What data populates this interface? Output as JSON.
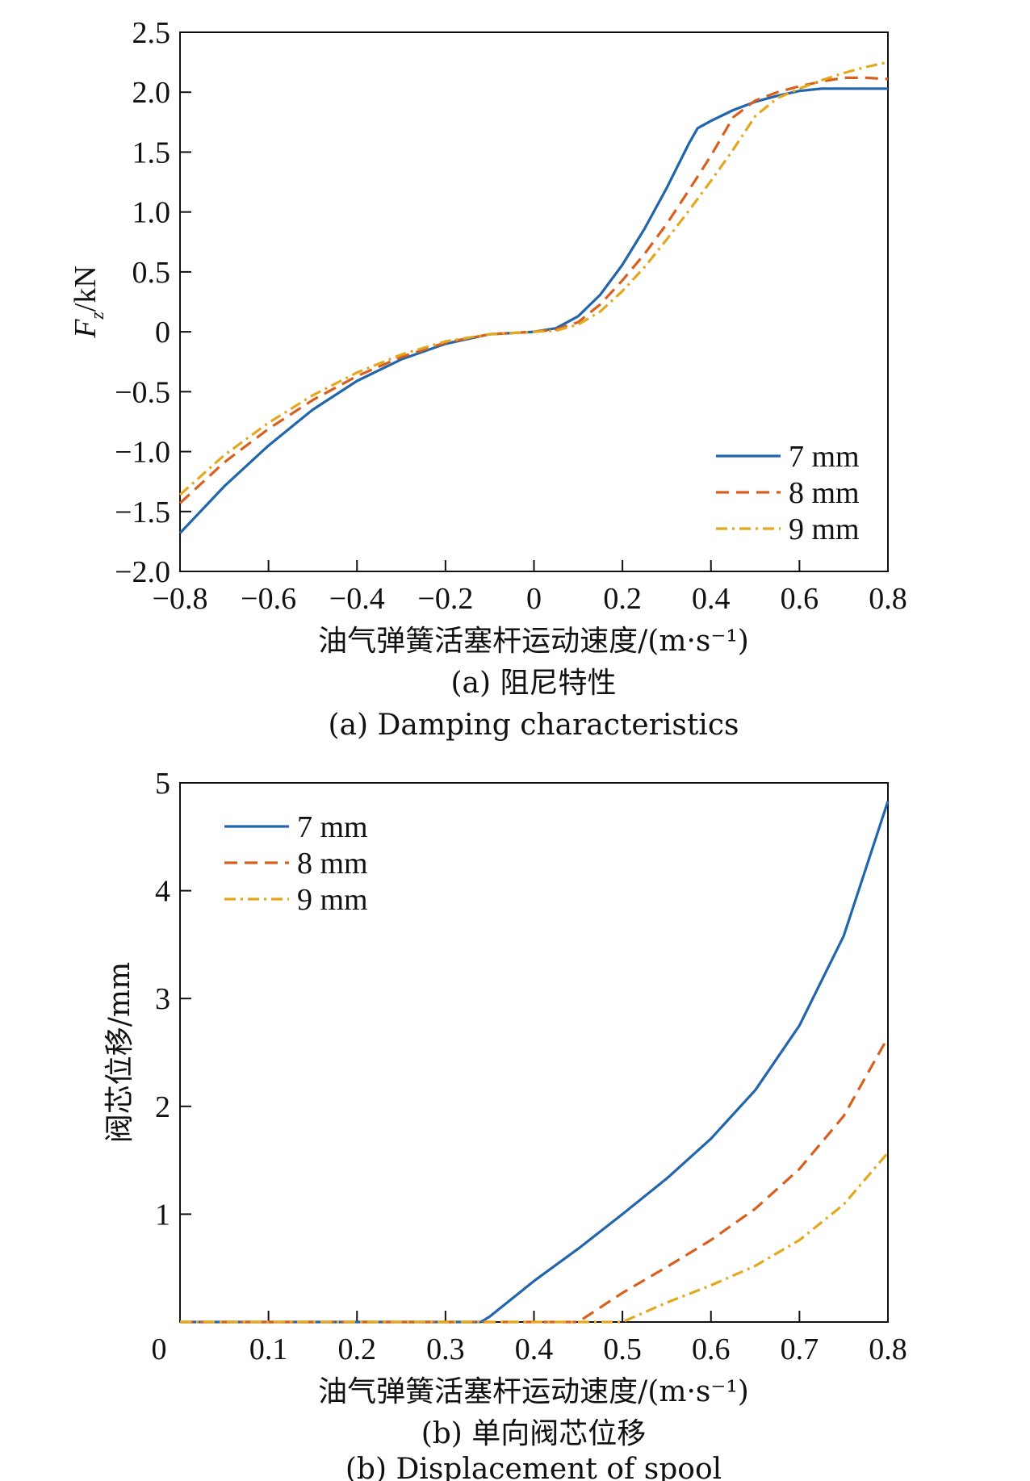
{
  "colors": {
    "blue": "#2166ac",
    "orange": "#d95f1e",
    "yellow": "#e3a81c",
    "axis": "#111111"
  },
  "chart_data": [
    {
      "id": "a",
      "type": "line",
      "title": "",
      "caption_cn": "(a) 阻尼特性",
      "caption_en": "(a) Damping characteristics",
      "xlabel": "油气弹簧活塞杆运动速度/(m·s⁻¹)",
      "ylabel": "F",
      "ylabel_sub": "z",
      "ylabel_unit": "/kN",
      "xlim": [
        -0.8,
        0.8
      ],
      "ylim": [
        -2.0,
        2.5
      ],
      "xticks": [
        -0.8,
        -0.6,
        -0.4,
        -0.2,
        0,
        0.2,
        0.4,
        0.6,
        0.8
      ],
      "xtick_labels": [
        "−0.8",
        "−0.6",
        "−0.4",
        "−0.2",
        "0",
        "0.2",
        "0.4",
        "0.6",
        "0.8"
      ],
      "yticks": [
        -2.0,
        -1.5,
        -1.0,
        -0.5,
        0,
        0.5,
        1.0,
        1.5,
        2.0,
        2.5
      ],
      "ytick_labels": [
        "−2.0",
        "−1.5",
        "−1.0",
        "−0.5",
        "0",
        "0.5",
        "1.0",
        "1.5",
        "2.0",
        "2.5"
      ],
      "grid": false,
      "legend_position": "bottom-right",
      "series": [
        {
          "name": "7 mm",
          "color": "blue",
          "dash": "solid",
          "x": [
            -0.8,
            -0.7,
            -0.6,
            -0.5,
            -0.4,
            -0.3,
            -0.2,
            -0.1,
            0,
            0.05,
            0.1,
            0.15,
            0.2,
            0.25,
            0.3,
            0.35,
            0.37,
            0.4,
            0.45,
            0.5,
            0.55,
            0.6,
            0.65,
            0.7,
            0.8
          ],
          "y": [
            -1.68,
            -1.29,
            -0.95,
            -0.65,
            -0.41,
            -0.23,
            -0.1,
            -0.02,
            0,
            0.03,
            0.13,
            0.31,
            0.56,
            0.86,
            1.2,
            1.57,
            1.7,
            1.76,
            1.85,
            1.92,
            1.97,
            2.01,
            2.03,
            2.03,
            2.03
          ]
        },
        {
          "name": "8 mm",
          "color": "orange",
          "dash": "dashed",
          "x": [
            -0.8,
            -0.7,
            -0.6,
            -0.5,
            -0.4,
            -0.3,
            -0.2,
            -0.1,
            0,
            0.05,
            0.1,
            0.15,
            0.2,
            0.25,
            0.3,
            0.35,
            0.4,
            0.45,
            0.5,
            0.55,
            0.6,
            0.65,
            0.7,
            0.75,
            0.8
          ],
          "y": [
            -1.43,
            -1.09,
            -0.81,
            -0.57,
            -0.37,
            -0.21,
            -0.09,
            -0.02,
            0,
            0.02,
            0.08,
            0.23,
            0.43,
            0.65,
            0.9,
            1.18,
            1.47,
            1.79,
            1.93,
            2.0,
            2.05,
            2.09,
            2.12,
            2.12,
            2.11
          ]
        },
        {
          "name": "9 mm",
          "color": "yellow",
          "dash": "dashdot",
          "x": [
            -0.8,
            -0.7,
            -0.6,
            -0.5,
            -0.4,
            -0.3,
            -0.2,
            -0.1,
            0,
            0.05,
            0.1,
            0.15,
            0.2,
            0.25,
            0.3,
            0.35,
            0.4,
            0.45,
            0.5,
            0.55,
            0.6,
            0.65,
            0.7,
            0.75,
            0.8
          ],
          "y": [
            -1.36,
            -1.03,
            -0.76,
            -0.53,
            -0.34,
            -0.19,
            -0.08,
            -0.02,
            0,
            0.01,
            0.06,
            0.17,
            0.34,
            0.54,
            0.77,
            1.01,
            1.26,
            1.52,
            1.8,
            1.95,
            2.03,
            2.1,
            2.16,
            2.21,
            2.25
          ]
        }
      ]
    },
    {
      "id": "b",
      "type": "line",
      "title": "",
      "caption_cn": "(b) 单向阀芯位移",
      "caption_en": "(b) Displacement of spool",
      "xlabel": "油气弹簧活塞杆运动速度/(m·s⁻¹)",
      "ylabel": "阀芯位移/mm",
      "xlim": [
        0,
        0.8
      ],
      "ylim": [
        0,
        5
      ],
      "xticks": [
        0.1,
        0.2,
        0.3,
        0.4,
        0.5,
        0.6,
        0.7,
        0.8
      ],
      "xtick_labels": [
        "0.1",
        "0.2",
        "0.3",
        "0.4",
        "0.5",
        "0.6",
        "0.7",
        "0.8"
      ],
      "yticks": [
        1,
        2,
        3,
        4,
        5
      ],
      "ytick_labels": [
        "1",
        "2",
        "3",
        "4",
        "5"
      ],
      "origin_label": "0",
      "grid": false,
      "legend_position": "top-left",
      "series": [
        {
          "name": "7 mm",
          "color": "blue",
          "dash": "solid",
          "x": [
            0,
            0.34,
            0.35,
            0.4,
            0.45,
            0.5,
            0.55,
            0.6,
            0.65,
            0.7,
            0.75,
            0.8
          ],
          "y": [
            0,
            0,
            0.05,
            0.38,
            0.68,
            1.0,
            1.33,
            1.7,
            2.15,
            2.75,
            3.58,
            4.83
          ]
        },
        {
          "name": "8 mm",
          "color": "orange",
          "dash": "dashed",
          "x": [
            0,
            0.45,
            0.5,
            0.55,
            0.6,
            0.65,
            0.7,
            0.75,
            0.8
          ],
          "y": [
            0,
            0,
            0.27,
            0.51,
            0.76,
            1.05,
            1.42,
            1.91,
            2.64
          ]
        },
        {
          "name": "9 mm",
          "color": "yellow",
          "dash": "dashdot",
          "x": [
            0,
            0.5,
            0.55,
            0.6,
            0.65,
            0.7,
            0.75,
            0.8
          ],
          "y": [
            0,
            0,
            0.18,
            0.34,
            0.52,
            0.76,
            1.09,
            1.57
          ]
        }
      ]
    }
  ]
}
